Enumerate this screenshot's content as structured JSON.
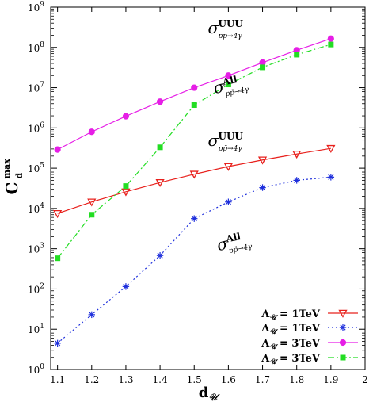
{
  "chart_data": {
    "type": "line",
    "xlabel": "d",
    "xlabel_sub": "𝒰",
    "ylabel": "C",
    "ylabel_sup": "max",
    "ylabel_sub": "d",
    "xlim": [
      1.08,
      2.0
    ],
    "ylim_log10": [
      0,
      9
    ],
    "yscale": "log",
    "grid": false,
    "legend_position": "bottom-right",
    "x_ticks": [
      "1.1",
      "1.2",
      "1.3",
      "1.4",
      "1.5",
      "1.6",
      "1.7",
      "1.8",
      "1.9",
      "2"
    ],
    "y_ticks": [
      {
        "base": "10",
        "exp": "0"
      },
      {
        "base": "10",
        "exp": "1"
      },
      {
        "base": "10",
        "exp": "2"
      },
      {
        "base": "10",
        "exp": "3"
      },
      {
        "base": "10",
        "exp": "4"
      },
      {
        "base": "10",
        "exp": "5"
      },
      {
        "base": "10",
        "exp": "6"
      },
      {
        "base": "10",
        "exp": "7"
      },
      {
        "base": "10",
        "exp": "8"
      },
      {
        "base": "10",
        "exp": "9"
      }
    ],
    "series": [
      {
        "name": "Λ𝒰 = 1TeV",
        "legend_label": "Λ",
        "legend_sub": "𝒰",
        "legend_rest": " = 1TeV",
        "color": "#e8201c",
        "marker": "triangle-down",
        "dash": "",
        "x": [
          1.1,
          1.2,
          1.3,
          1.4,
          1.5,
          1.6,
          1.7,
          1.8,
          1.9
        ],
        "y": [
          7500,
          14500,
          26000,
          44000,
          71000,
          110000,
          160000,
          225000,
          310000
        ]
      },
      {
        "name": "Λ𝒰 = 1TeV",
        "legend_label": "Λ",
        "legend_sub": "𝒰",
        "legend_rest": " = 1TeV",
        "color": "#1e2fdc",
        "marker": "asterisk",
        "dash": "2,3",
        "x": [
          1.1,
          1.2,
          1.3,
          1.4,
          1.5,
          1.6,
          1.7,
          1.8,
          1.9
        ],
        "y": [
          4.5,
          23,
          115,
          680,
          5600,
          14500,
          33000,
          50000,
          60000
        ]
      },
      {
        "name": "Λ𝒰 = 3TeV",
        "legend_label": "Λ",
        "legend_sub": "𝒰",
        "legend_rest": " = 3TeV",
        "color": "#e61ee6",
        "marker": "circle",
        "dash": "",
        "x": [
          1.1,
          1.2,
          1.3,
          1.4,
          1.5,
          1.6,
          1.7,
          1.8,
          1.9
        ],
        "y": [
          290000,
          800000,
          1950000,
          4500000,
          10000000,
          20000000,
          42000000,
          85000000,
          165000000
        ]
      },
      {
        "name": "Λ𝒰 = 3TeV",
        "legend_label": "Λ",
        "legend_sub": "𝒰",
        "legend_rest": " = 3TeV",
        "color": "#22dd22",
        "marker": "square",
        "dash": "8,3,2,3",
        "x": [
          1.1,
          1.2,
          1.3,
          1.4,
          1.5,
          1.6,
          1.7,
          1.8,
          1.9
        ],
        "y": [
          580,
          7000,
          36000,
          330000,
          3700000,
          12000000,
          32000000,
          66000000,
          118000000
        ]
      }
    ],
    "annotations": [
      {
        "sym": "σ",
        "sup": "UUU",
        "sub": "pp̄→4γ",
        "anchor_x": 1.54,
        "anchor_log10": 8.35,
        "rotate": 0
      },
      {
        "sym": "σ",
        "sup": "All",
        "sub": "pp̄→4γ",
        "anchor_x": 1.56,
        "anchor_log10": 6.85,
        "rotate": -12
      },
      {
        "sym": "σ",
        "sup": "UUU",
        "sub": "pp̄→4γ",
        "anchor_x": 1.54,
        "anchor_log10": 5.55,
        "rotate": 0
      },
      {
        "sym": "σ",
        "sup": "All",
        "sub": "pp̄→4γ",
        "anchor_x": 1.57,
        "anchor_log10": 2.95,
        "rotate": -12
      }
    ]
  }
}
